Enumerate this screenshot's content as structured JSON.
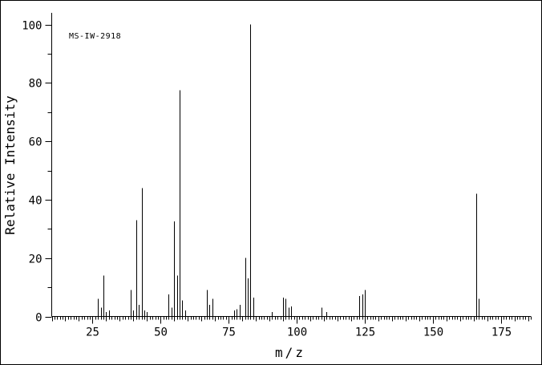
{
  "chart_data": {
    "type": "bar",
    "subtype": "mass-spectrum",
    "title": "",
    "annotation": "MS-IW-2918",
    "xlabel": "m/z",
    "ylabel": "Relative Intensity",
    "xlim": [
      10,
      186
    ],
    "ylim": [
      0,
      104
    ],
    "grid": false,
    "x_major_ticks": [
      25,
      50,
      75,
      100,
      125,
      150,
      175
    ],
    "x_medium_tick_step": 5,
    "x_minor_tick_step": 1,
    "y_major_ticks": [
      0,
      20,
      40,
      60,
      80,
      100
    ],
    "y_minor_ticks": [
      10,
      30,
      50,
      70,
      90
    ],
    "peaks": [
      {
        "mz": 27,
        "intensity": 6
      },
      {
        "mz": 28,
        "intensity": 3
      },
      {
        "mz": 29,
        "intensity": 14
      },
      {
        "mz": 30,
        "intensity": 1.5
      },
      {
        "mz": 31,
        "intensity": 2
      },
      {
        "mz": 39,
        "intensity": 9
      },
      {
        "mz": 40,
        "intensity": 2
      },
      {
        "mz": 41,
        "intensity": 33
      },
      {
        "mz": 42,
        "intensity": 4
      },
      {
        "mz": 43,
        "intensity": 44
      },
      {
        "mz": 44,
        "intensity": 2
      },
      {
        "mz": 45,
        "intensity": 1.5
      },
      {
        "mz": 53,
        "intensity": 7.5
      },
      {
        "mz": 54,
        "intensity": 3
      },
      {
        "mz": 55,
        "intensity": 32.5
      },
      {
        "mz": 56,
        "intensity": 14
      },
      {
        "mz": 57,
        "intensity": 77.5
      },
      {
        "mz": 58,
        "intensity": 5.5
      },
      {
        "mz": 59,
        "intensity": 2
      },
      {
        "mz": 67,
        "intensity": 9
      },
      {
        "mz": 68,
        "intensity": 4
      },
      {
        "mz": 69,
        "intensity": 6
      },
      {
        "mz": 77,
        "intensity": 2
      },
      {
        "mz": 78,
        "intensity": 2.5
      },
      {
        "mz": 79,
        "intensity": 4
      },
      {
        "mz": 81,
        "intensity": 20
      },
      {
        "mz": 82,
        "intensity": 13
      },
      {
        "mz": 83,
        "intensity": 100
      },
      {
        "mz": 84,
        "intensity": 6.5
      },
      {
        "mz": 91,
        "intensity": 1.5
      },
      {
        "mz": 95,
        "intensity": 6.5
      },
      {
        "mz": 96,
        "intensity": 6
      },
      {
        "mz": 97,
        "intensity": 3
      },
      {
        "mz": 98,
        "intensity": 3.5
      },
      {
        "mz": 109,
        "intensity": 3
      },
      {
        "mz": 111,
        "intensity": 1.5
      },
      {
        "mz": 123,
        "intensity": 7
      },
      {
        "mz": 124,
        "intensity": 7.5
      },
      {
        "mz": 125,
        "intensity": 9
      },
      {
        "mz": 166,
        "intensity": 42
      },
      {
        "mz": 167,
        "intensity": 6
      }
    ]
  },
  "colors": {
    "foreground": "#000000",
    "background": "#ffffff"
  }
}
